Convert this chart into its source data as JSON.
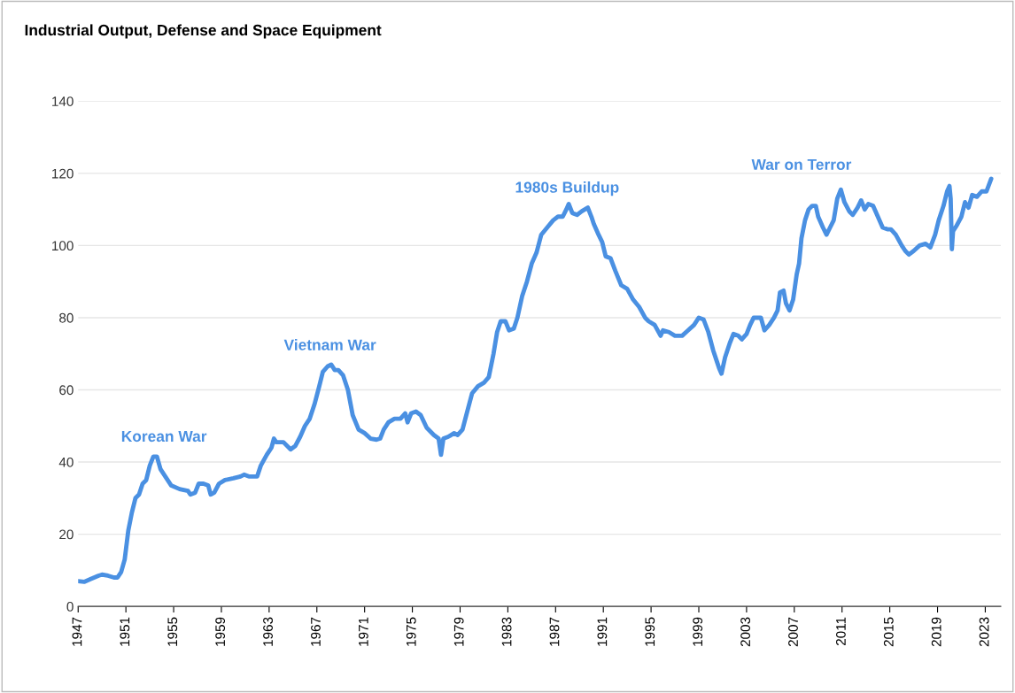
{
  "chart_data": {
    "type": "line",
    "title": "Industrial Output, Defense and Space Equipment",
    "x": [
      1947.0,
      1947.5,
      1948,
      1948.7,
      1949,
      1949.5,
      1950,
      1950.3,
      1950.6,
      1950.9,
      1951.2,
      1951.5,
      1951.8,
      1952.1,
      1952.4,
      1952.7,
      1953,
      1953.3,
      1953.6,
      1953.9,
      1954.3,
      1954.8,
      1955.5,
      1956.2,
      1956.4,
      1956.8,
      1957.1,
      1957.5,
      1957.9,
      1958.1,
      1958.4,
      1958.8,
      1959.3,
      1960,
      1960.6,
      1960.9,
      1961.3,
      1962,
      1962.3,
      1962.8,
      1963.2,
      1963.4,
      1963.6,
      1964.2,
      1964.8,
      1965.2,
      1965.6,
      1966,
      1966.4,
      1966.8,
      1967.2,
      1967.5,
      1967.9,
      1968.2,
      1968.5,
      1968.8,
      1969.2,
      1969.6,
      1970,
      1970.5,
      1971,
      1971.5,
      1972,
      1972.3,
      1972.6,
      1973,
      1973.5,
      1974,
      1974.4,
      1974.6,
      1974.9,
      1975.3,
      1975.7,
      1976.2,
      1976.8,
      1977.2,
      1977.4,
      1977.6,
      1978,
      1978.5,
      1978.8,
      1979.2,
      1979.6,
      1980,
      1980.5,
      1981,
      1981.4,
      1981.8,
      1982.1,
      1982.4,
      1982.8,
      1983.1,
      1983.5,
      1983.8,
      1984.2,
      1984.6,
      1985,
      1985.4,
      1985.8,
      1986.3,
      1986.8,
      1987.2,
      1987.6,
      1987.9,
      1988.1,
      1988.4,
      1988.8,
      1989.2,
      1989.7,
      1990.0,
      1990.2,
      1990.6,
      1990.9,
      1991.2,
      1991.6,
      1992,
      1992.5,
      1993,
      1993.5,
      1994,
      1994.5,
      1994.8,
      1995.3,
      1995.8,
      1996,
      1996.5,
      1997,
      1997.6,
      1998.1,
      1998.6,
      1999.0,
      1999.4,
      1999.8,
      2000.2,
      2000.5,
      2000.7,
      2000.9,
      2001.2,
      2001.6,
      2001.9,
      2002.3,
      2002.6,
      2003,
      2003.3,
      2003.6,
      2004.2,
      2004.5,
      2004.9,
      2005.3,
      2005.6,
      2005.8,
      2006.1,
      2006.3,
      2006.6,
      2006.9,
      2007.2,
      2007.4,
      2007.6,
      2007.9,
      2008.2,
      2008.5,
      2008.8,
      2009,
      2009.4,
      2009.7,
      2010,
      2010.3,
      2010.6,
      2010.9,
      2011.2,
      2011.6,
      2011.9,
      2012.3,
      2012.6,
      2012.9,
      2013.2,
      2013.6,
      2014,
      2014.4,
      2014.8,
      2015.1,
      2015.5,
      2016,
      2016.3,
      2016.6,
      2017,
      2017.5,
      2018,
      2018.4,
      2018.8,
      2019.1,
      2019.5,
      2019.8,
      2020.0,
      2020.1,
      2020.2,
      2020.3,
      2020.6,
      2021,
      2021.3,
      2021.6,
      2021.9,
      2022.3,
      2022.7,
      2023.1,
      2023.5
    ],
    "series": [
      {
        "color": "#4a90e2",
        "values": [
          7,
          6.8,
          7.5,
          8.5,
          8.8,
          8.5,
          8,
          8,
          9.5,
          13,
          21,
          26,
          30,
          31,
          34,
          35,
          39,
          41.5,
          41.5,
          38,
          36,
          33.5,
          32.5,
          32,
          31,
          31.5,
          34,
          34,
          33.5,
          31,
          31.5,
          34,
          35,
          35.5,
          36,
          36.5,
          36,
          36,
          39,
          42,
          44,
          46.5,
          45.5,
          45.5,
          43.5,
          44.5,
          47,
          50,
          52,
          56,
          61,
          65,
          66.5,
          67,
          65.5,
          65.5,
          64,
          60,
          53,
          49,
          48,
          46.5,
          46.2,
          46.5,
          49,
          51,
          52,
          52,
          53.5,
          51,
          53.5,
          54,
          53,
          49.5,
          47.5,
          46.5,
          42,
          46.5,
          47,
          48,
          47.5,
          49,
          54,
          59,
          61,
          62,
          63.5,
          70,
          76,
          79,
          79,
          76.5,
          77,
          80,
          86,
          90,
          95,
          98,
          103,
          105,
          107,
          108,
          108,
          110,
          111.5,
          109,
          108.5,
          109.5,
          110.5,
          108,
          106,
          103,
          101,
          97,
          96.5,
          93,
          89,
          88,
          85,
          83,
          80,
          79,
          78,
          75,
          76.5,
          76,
          75,
          75,
          76.5,
          78,
          80,
          79.5,
          76,
          71,
          68,
          66,
          64.5,
          69,
          73,
          75.5,
          75,
          74,
          75.5,
          78,
          80,
          80,
          76.5,
          78,
          80,
          82,
          87,
          87.5,
          84,
          82,
          85,
          92,
          95,
          102,
          107,
          110,
          111,
          111,
          108,
          105,
          103,
          105,
          107,
          113,
          115.5,
          112,
          109.5,
          108.5,
          110.5,
          112.5,
          110,
          111.5,
          111,
          108,
          105,
          104.5,
          104.5,
          103,
          100,
          98.5,
          97.5,
          98.5,
          100,
          100.5,
          99.5,
          103,
          107,
          111,
          115,
          116.5,
          113,
          99,
          104,
          105.5,
          108,
          112,
          110.5,
          114,
          113.5,
          115,
          115,
          118.5
        ]
      }
    ],
    "xlim": [
      1947,
      2024.3
    ],
    "xticks": [
      1947,
      1951,
      1955,
      1959,
      1963,
      1967,
      1971,
      1975,
      1979,
      1983,
      1987,
      1991,
      1995,
      1999,
      2003,
      2007,
      2011,
      2015,
      2019,
      2023
    ],
    "ylim": [
      0,
      140
    ],
    "yticks": [
      0,
      20,
      40,
      60,
      80,
      100,
      120,
      140
    ],
    "grid": "y",
    "annotations": [
      "Korean War",
      "Vietnam War",
      "1980s Buildup",
      "War on Terror"
    ]
  }
}
